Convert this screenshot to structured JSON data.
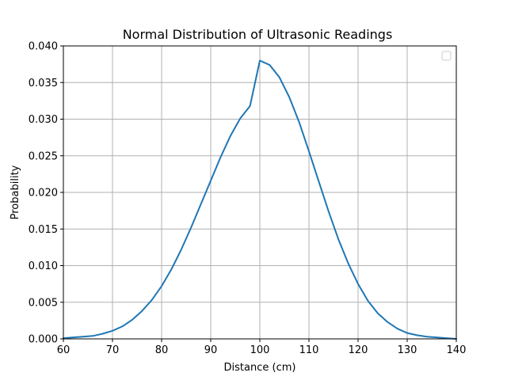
{
  "chart_data": {
    "type": "line",
    "title": "Normal Distribution of Ultrasonic Readings",
    "xlabel": "Distance (cm)",
    "ylabel": "Probability",
    "xlim": [
      60,
      140
    ],
    "ylim": [
      0,
      0.04
    ],
    "x_ticks": [
      60,
      70,
      80,
      90,
      100,
      110,
      120,
      130,
      140
    ],
    "x_tick_labels": [
      "60",
      "70",
      "80",
      "90",
      "100",
      "110",
      "120",
      "130",
      "140"
    ],
    "y_ticks": [
      0,
      0.005,
      0.01,
      0.015,
      0.02,
      0.025,
      0.03,
      0.035,
      0.04
    ],
    "y_tick_labels": [
      "0.000",
      "0.005",
      "0.010",
      "0.015",
      "0.020",
      "0.025",
      "0.030",
      "0.035",
      "0.040"
    ],
    "grid": true,
    "legend": {
      "placement": "upper right",
      "entries": []
    },
    "series": [
      {
        "color": "#1f77b4",
        "x": [
          60,
          62,
          64,
          66,
          68,
          70,
          72,
          74,
          76,
          78,
          80,
          82,
          84,
          86,
          88,
          90,
          92,
          94,
          96,
          98,
          100,
          102,
          104,
          106,
          108,
          110,
          112,
          114,
          116,
          118,
          120,
          122,
          124,
          126,
          128,
          130,
          132,
          134,
          136,
          138,
          140
        ],
        "values": [
          0.0001,
          0.0002,
          0.0003,
          0.0004,
          0.0007,
          0.0011,
          0.0017,
          0.0026,
          0.0038,
          0.0053,
          0.0072,
          0.0095,
          0.0122,
          0.0152,
          0.0184,
          0.0216,
          0.0248,
          0.0277,
          0.0301,
          0.0318,
          0.038,
          0.0374,
          0.0357,
          0.033,
          0.0296,
          0.0256,
          0.0215,
          0.0174,
          0.0136,
          0.0103,
          0.0075,
          0.0052,
          0.0035,
          0.0023,
          0.0014,
          0.0008,
          0.0005,
          0.0003,
          0.0002,
          0.0001,
          0.0
        ]
      }
    ]
  }
}
